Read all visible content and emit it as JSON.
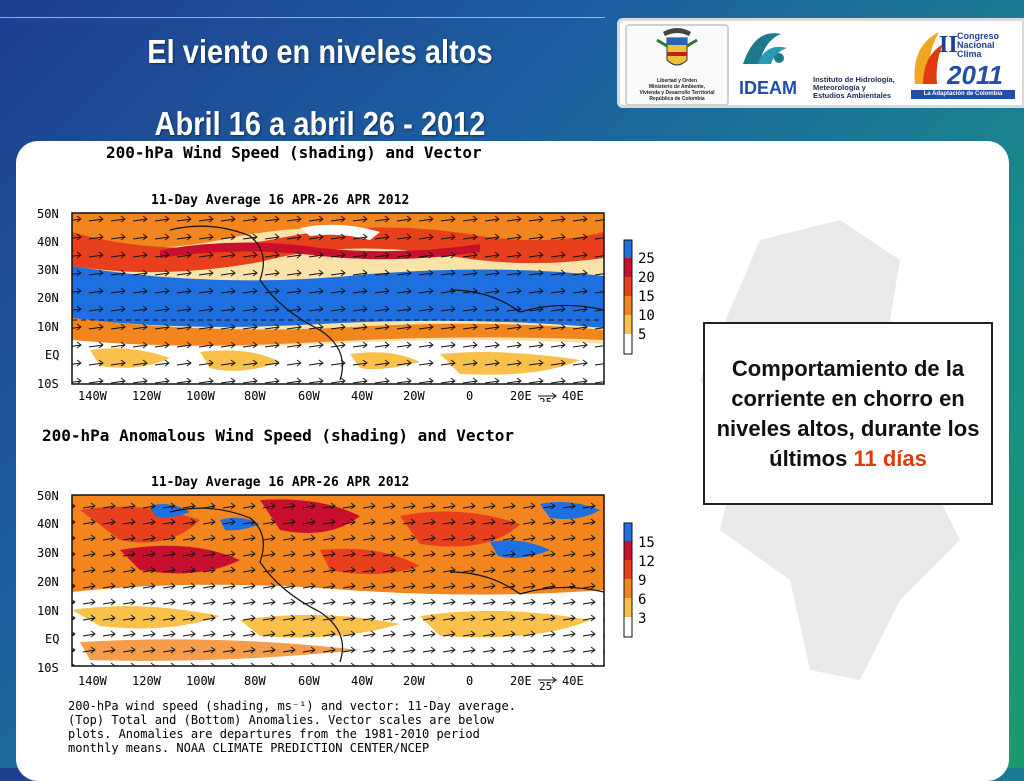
{
  "slide": {
    "title_line1": "El viento en niveles altos",
    "title_line2": "Abril 16 a abril 26 - 2012"
  },
  "logos": {
    "coat_caption": [
      "Libertad y Orden",
      "Ministerio de Ambiente,",
      "Vivienda y Desarrollo Territorial",
      "República de Colombia"
    ],
    "ideam_name": "IDEAM",
    "ideam_subtitle": [
      "Instituto de Hidrología,",
      "Meteorología y",
      "Estudios Ambientales"
    ],
    "congress_lines": [
      "Congreso",
      "Nacional",
      "Clima"
    ],
    "congress_numeral": "II",
    "congress_year": "2011",
    "congress_tagline": "La Adaptación de Colombia"
  },
  "figure": {
    "header": "200-hPa Wind Speed (shading) and Vector",
    "top_map": {
      "subtitle": "11-Day Average 16 APR-26 APR 2012",
      "lat_labels": [
        "50N",
        "40N",
        "30N",
        "20N",
        "10N",
        "EQ",
        "10S"
      ],
      "lon_labels": [
        "140W",
        "120W",
        "100W",
        "80W",
        "60W",
        "40W",
        "20W",
        "0",
        "20E",
        "40E"
      ],
      "vector_scale": "25",
      "colorbar_labels": [
        "25",
        "20",
        "15",
        "10",
        "5"
      ],
      "colorbar_colors": [
        "#1e6fe0",
        "#c8102e",
        "#e8401c",
        "#f2851e",
        "#f9c04a",
        "#ffffff"
      ]
    },
    "anomaly_header": "200-hPa Anomalous Wind Speed (shading) and Vector",
    "bottom_map": {
      "subtitle": "11-Day Average 16 APR-26 APR 2012",
      "lat_labels": [
        "50N",
        "40N",
        "30N",
        "20N",
        "10N",
        "EQ",
        "10S"
      ],
      "lon_labels": [
        "140W",
        "120W",
        "100W",
        "80W",
        "60W",
        "40W",
        "20W",
        "0",
        "20E",
        "40E"
      ],
      "vector_scale": "25",
      "colorbar_labels": [
        "15",
        "12",
        "9",
        "6",
        "3"
      ],
      "colorbar_colors": [
        "#1e6fe0",
        "#c8102e",
        "#e8401c",
        "#f2851e",
        "#f9c04a",
        "#ffffff"
      ]
    },
    "caption_lines": [
      "200-hPa wind speed (shading, ms⁻¹) and vector: 11-Day average.",
      "(Top) Total and (Bottom) Anomalies. Vector scales are below",
      "plots. Anomalies are departures from the 1981-2010 period",
      "monthly means. NOAA CLIMATE PREDICTION CENTER/NCEP"
    ]
  },
  "callout": {
    "text_main": "Comportamiento de la corriente en chorro en niveles altos, durante los últimos",
    "text_highlight": "11 días"
  }
}
